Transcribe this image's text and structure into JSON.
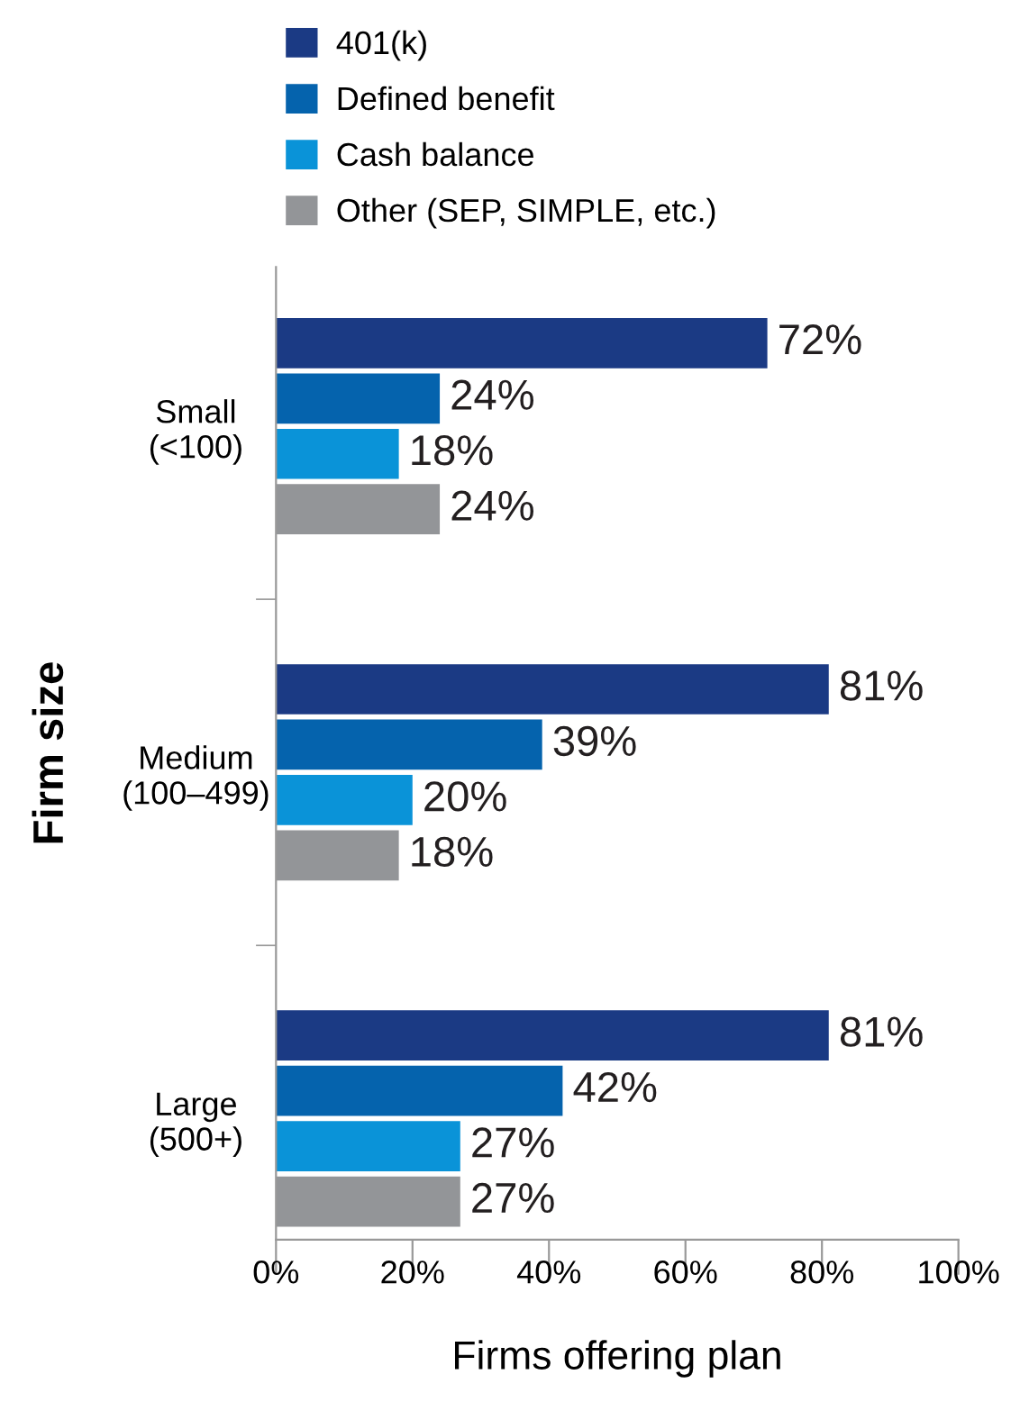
{
  "chart_data": {
    "type": "bar",
    "orientation": "horizontal",
    "xlabel": "Firms offering plan",
    "ylabel": "Firm size",
    "categories": [
      "Small\n(<100)",
      "Medium\n(100–499)",
      "Large\n(500+)"
    ],
    "series": [
      {
        "name": "401(k)",
        "color": "#1b3a84",
        "values": [
          72,
          81,
          81
        ],
        "value_labels": [
          "72%",
          "81%",
          "81%"
        ]
      },
      {
        "name": "Defined benefit",
        "color": "#0563ad",
        "values": [
          24,
          39,
          42
        ],
        "value_labels": [
          "24%",
          "39%",
          "42%"
        ]
      },
      {
        "name": "Cash balance",
        "color": "#0a93d8",
        "values": [
          18,
          20,
          27
        ],
        "value_labels": [
          "18%",
          "20%",
          "27%"
        ]
      },
      {
        "name": "Other (SEP, SIMPLE, etc.)",
        "color": "#939598",
        "values": [
          24,
          18,
          27
        ],
        "value_labels": [
          "24%",
          "18%",
          "27%"
        ]
      }
    ],
    "xlim": [
      0,
      100
    ],
    "xticks": [
      {
        "value": 0,
        "label": "0%"
      },
      {
        "value": 20,
        "label": "20%"
      },
      {
        "value": 40,
        "label": "40%"
      },
      {
        "value": 60,
        "label": "60%"
      },
      {
        "value": 80,
        "label": "80%"
      },
      {
        "value": 100,
        "label": "100%"
      }
    ],
    "grid": false,
    "legend": "top left"
  }
}
